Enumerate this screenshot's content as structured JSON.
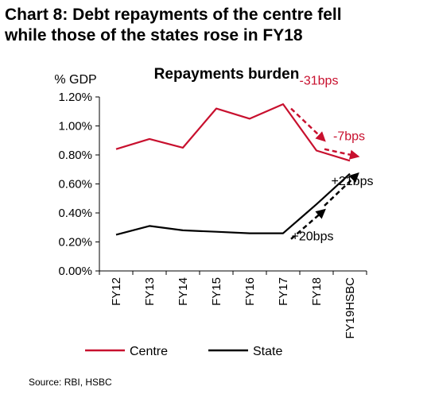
{
  "heading": {
    "line1": "Chart 8: Debt repayments of the centre fell",
    "line2": "while those of the states rose in FY18"
  },
  "source": "Source: RBI, HSBC",
  "chart_data": {
    "type": "line",
    "title": "Repayments burden",
    "ylabel": "% GDP",
    "xlabel": "",
    "categories": [
      "FY12",
      "FY13",
      "FY14",
      "FY15",
      "FY16",
      "FY17",
      "FY18",
      "FY19HSBC"
    ],
    "ylim": [
      0,
      1.2
    ],
    "yticks": [
      0,
      0.2,
      0.4,
      0.6,
      0.8,
      1.0,
      1.2
    ],
    "ytick_labels": [
      "0.00%",
      "0.20%",
      "0.40%",
      "0.60%",
      "0.80%",
      "1.00%",
      "1.20%"
    ],
    "grid": false,
    "legend_position": "bottom",
    "series": [
      {
        "name": "Centre",
        "color": "#c8102e",
        "values": [
          0.84,
          0.91,
          0.85,
          1.12,
          1.05,
          1.15,
          0.83,
          0.76
        ]
      },
      {
        "name": "State",
        "color": "#000000",
        "values": [
          0.25,
          0.31,
          0.28,
          0.27,
          0.26,
          0.26,
          0.46,
          0.67
        ]
      }
    ],
    "annotations": [
      {
        "text": "-31bps",
        "color": "#c8102e",
        "from_category": "FY17",
        "to_category": "FY18",
        "from_value": 1.12,
        "to_value": 0.9
      },
      {
        "text": "-7bps",
        "color": "#c8102e",
        "from_category": "FY18",
        "to_category": "FY19HSBC",
        "from_value": 0.84,
        "to_value": 0.79
      },
      {
        "text": "+20bps",
        "color": "#000000",
        "from_category": "FY17",
        "to_category": "FY18",
        "from_value": 0.22,
        "to_value": 0.42
      },
      {
        "text": "+21bps",
        "color": "#000000",
        "from_category": "FY18",
        "to_category": "FY19HSBC",
        "from_value": 0.45,
        "to_value": 0.67
      }
    ]
  }
}
